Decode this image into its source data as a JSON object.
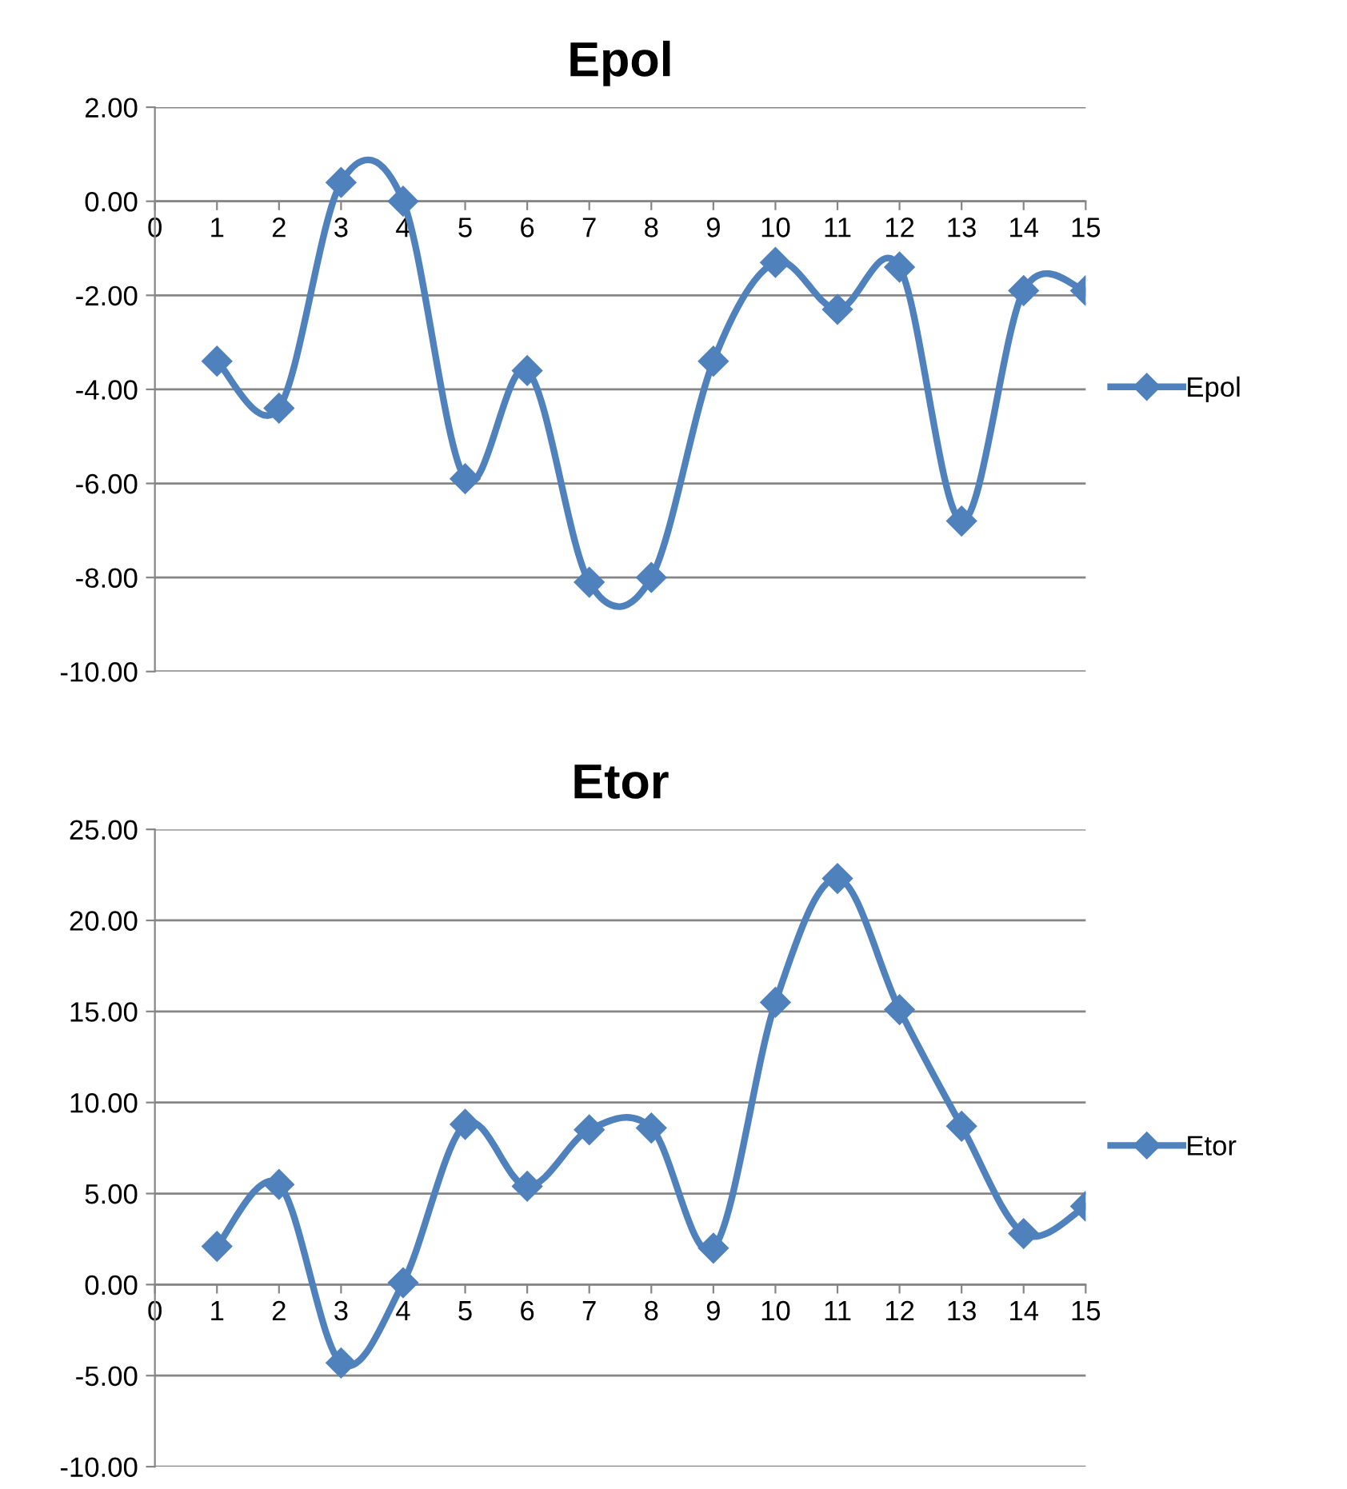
{
  "chart_data": [
    {
      "type": "line",
      "title": "Epol",
      "x": [
        1,
        2,
        3,
        4,
        5,
        6,
        7,
        8,
        9,
        10,
        11,
        12,
        13,
        14,
        15
      ],
      "series": [
        {
          "name": "Epol",
          "color": "#4f81bd",
          "values": [
            -3.4,
            -4.4,
            0.4,
            0.0,
            -5.9,
            -3.6,
            -8.1,
            -8.0,
            -3.4,
            -1.3,
            -2.3,
            -1.4,
            -6.8,
            -1.9,
            -1.9
          ]
        }
      ],
      "xlim": [
        0,
        15
      ],
      "xticks": [
        0,
        1,
        2,
        3,
        4,
        5,
        6,
        7,
        8,
        9,
        10,
        11,
        12,
        13,
        14,
        15
      ],
      "ylim": [
        -10,
        2
      ],
      "yticks": [
        {
          "value": -10,
          "label": "-10.00"
        },
        {
          "value": -8,
          "label": "-8.00"
        },
        {
          "value": -6,
          "label": "-6.00"
        },
        {
          "value": -4,
          "label": "-4.00"
        },
        {
          "value": -2,
          "label": "-2.00"
        },
        {
          "value": 0,
          "label": "0.00"
        },
        {
          "value": 2,
          "label": "2.00"
        }
      ],
      "grid": "y",
      "legend": "right",
      "marker": "diamond",
      "line_style": "solid"
    },
    {
      "type": "line",
      "title": "Etor",
      "x": [
        1,
        2,
        3,
        4,
        5,
        6,
        7,
        8,
        9,
        10,
        11,
        12,
        13,
        14,
        15
      ],
      "series": [
        {
          "name": "Etor",
          "color": "#4f81bd",
          "values": [
            2.1,
            5.5,
            -4.3,
            0.1,
            8.8,
            5.4,
            8.5,
            8.6,
            2.0,
            15.5,
            22.3,
            15.1,
            8.7,
            2.8,
            4.3
          ]
        }
      ],
      "xlim": [
        0,
        15
      ],
      "xticks": [
        0,
        1,
        2,
        3,
        4,
        5,
        6,
        7,
        8,
        9,
        10,
        11,
        12,
        13,
        14,
        15
      ],
      "ylim": [
        -10,
        25
      ],
      "yticks": [
        {
          "value": -10,
          "label": "-10.00"
        },
        {
          "value": -5,
          "label": "-5.00"
        },
        {
          "value": 0,
          "label": "0.00"
        },
        {
          "value": 5,
          "label": "5.00"
        },
        {
          "value": 10,
          "label": "10.00"
        },
        {
          "value": 15,
          "label": "15.00"
        },
        {
          "value": 20,
          "label": "20.00"
        },
        {
          "value": 25,
          "label": "25.00"
        }
      ],
      "grid": "y",
      "legend": "right",
      "marker": "diamond",
      "line_style": "solid"
    }
  ]
}
